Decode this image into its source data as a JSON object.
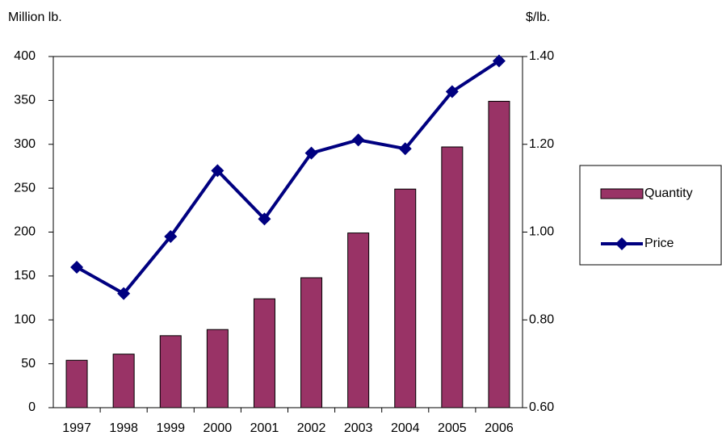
{
  "chart_data": {
    "type": "bar-line",
    "y_label": "Million lb.",
    "y2_label": "$/lb.",
    "categories": [
      "1997",
      "1998",
      "1999",
      "2000",
      "2001",
      "2002",
      "2003",
      "2004",
      "2005",
      "2006"
    ],
    "series": [
      {
        "name": "Quantity",
        "type": "bar",
        "color": "#993366",
        "values": [
          54,
          61,
          82,
          89,
          124,
          148,
          199,
          249,
          297,
          349
        ]
      },
      {
        "name": "Price",
        "type": "line",
        "axis": "y2",
        "color": "#000080",
        "values": [
          0.92,
          0.86,
          0.99,
          1.14,
          1.03,
          1.18,
          1.21,
          1.19,
          1.32,
          1.39
        ]
      }
    ],
    "ylim": [
      0,
      400
    ],
    "yticks": [
      0,
      50,
      100,
      150,
      200,
      250,
      300,
      350,
      400
    ],
    "y2lim": [
      0.6,
      1.4
    ],
    "y2ticks": [
      {
        "value": 0.6,
        "label": "0.60"
      },
      {
        "value": 0.8,
        "label": "0.80"
      },
      {
        "value": 1.0,
        "label": "1.00"
      },
      {
        "value": 1.2,
        "label": "1.20"
      },
      {
        "value": 1.4,
        "label": "1.40"
      }
    ],
    "grid": false,
    "legend": "right"
  }
}
